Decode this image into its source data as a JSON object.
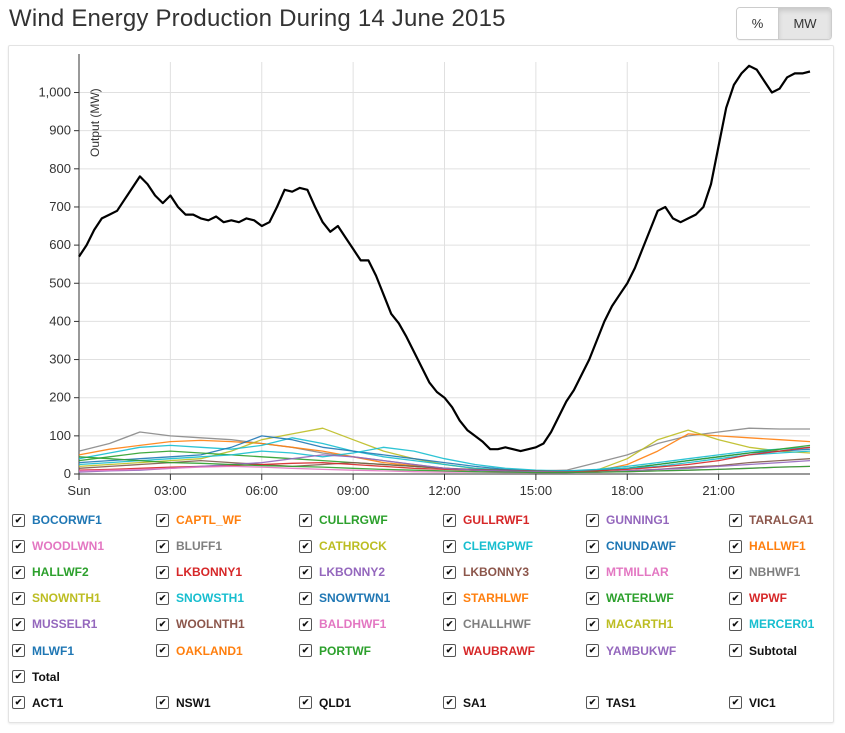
{
  "title": "Wind Energy Production During 14 June 2015",
  "unit_toggle": {
    "percent_label": "%",
    "mw_label": "MW",
    "selected": "MW"
  },
  "chart_data": {
    "type": "line",
    "title": "Wind Energy Production During 14 June 2015",
    "ylabel": "Output (MW)",
    "xlabel": "",
    "ylim": [
      0,
      1080
    ],
    "xlim": [
      0,
      24
    ],
    "y_ticks": [
      0,
      100,
      200,
      300,
      400,
      500,
      600,
      700,
      800,
      900,
      1000
    ],
    "y_tick_labels": [
      "0",
      "100",
      "200",
      "300",
      "400",
      "500",
      "600",
      "700",
      "800",
      "900",
      "1,000"
    ],
    "x_ticks": [
      0,
      3,
      6,
      9,
      12,
      15,
      18,
      21
    ],
    "x_tick_labels": [
      "Sun",
      "03:00",
      "06:00",
      "09:00",
      "12:00",
      "15:00",
      "18:00",
      "21:00"
    ],
    "grid": true,
    "series": [
      {
        "name": "Total",
        "color": "#000000",
        "x": [
          0,
          0.25,
          0.5,
          0.75,
          1.0,
          1.25,
          1.5,
          1.75,
          2.0,
          2.25,
          2.5,
          2.75,
          3.0,
          3.25,
          3.5,
          3.75,
          4.0,
          4.25,
          4.5,
          4.75,
          5.0,
          5.25,
          5.5,
          5.75,
          6.0,
          6.25,
          6.5,
          6.75,
          7.0,
          7.25,
          7.5,
          7.75,
          8.0,
          8.25,
          8.5,
          8.75,
          9.0,
          9.25,
          9.5,
          9.75,
          10.0,
          10.25,
          10.5,
          10.75,
          11.0,
          11.25,
          11.5,
          11.75,
          12.0,
          12.25,
          12.5,
          12.75,
          13.0,
          13.25,
          13.5,
          13.75,
          14.0,
          14.25,
          14.5,
          14.75,
          15.0,
          15.25,
          15.5,
          15.75,
          16.0,
          16.25,
          16.5,
          16.75,
          17.0,
          17.25,
          17.5,
          17.75,
          18.0,
          18.25,
          18.5,
          18.75,
          19.0,
          19.25,
          19.5,
          19.75,
          20.0,
          20.25,
          20.5,
          20.75,
          21.0,
          21.25,
          21.5,
          21.75,
          22.0,
          22.25,
          22.5,
          22.75,
          23.0,
          23.25,
          23.5,
          23.75,
          24.0
        ],
        "values": [
          570,
          600,
          640,
          670,
          680,
          690,
          720,
          750,
          780,
          760,
          730,
          710,
          730,
          700,
          680,
          680,
          670,
          665,
          675,
          660,
          665,
          660,
          670,
          665,
          650,
          660,
          700,
          745,
          740,
          750,
          745,
          700,
          660,
          635,
          650,
          620,
          590,
          560,
          560,
          520,
          470,
          420,
          395,
          360,
          320,
          280,
          240,
          215,
          200,
          175,
          140,
          115,
          100,
          85,
          65,
          65,
          70,
          65,
          60,
          65,
          70,
          80,
          110,
          150,
          190,
          220,
          260,
          300,
          350,
          400,
          440,
          470,
          500,
          540,
          590,
          640,
          690,
          700,
          670,
          660,
          670,
          680,
          700,
          760,
          860,
          960,
          1020,
          1050,
          1070,
          1060,
          1030,
          1000,
          1010,
          1040,
          1050,
          1050,
          1055
        ]
      },
      {
        "name": "GUNNING1",
        "color": "#888888",
        "x": [
          0,
          1,
          2,
          3,
          4,
          5,
          6,
          7,
          8,
          9,
          10,
          11,
          12,
          13,
          14,
          15,
          16,
          17,
          18,
          19,
          20,
          21,
          22,
          23,
          24
        ],
        "values": [
          60,
          80,
          110,
          100,
          95,
          90,
          80,
          70,
          55,
          45,
          35,
          25,
          15,
          10,
          8,
          8,
          10,
          30,
          50,
          80,
          100,
          110,
          120,
          118,
          118
        ]
      },
      {
        "name": "CAPTL_WF",
        "color": "#ff7f0e",
        "x": [
          0,
          1,
          2,
          3,
          4,
          5,
          6,
          7,
          8,
          9,
          10,
          11,
          12,
          13,
          14,
          15,
          16,
          17,
          18,
          19,
          20,
          21,
          22,
          23,
          24
        ],
        "values": [
          50,
          65,
          75,
          85,
          88,
          85,
          80,
          70,
          60,
          45,
          30,
          22,
          15,
          10,
          8,
          5,
          5,
          8,
          25,
          60,
          105,
          100,
          95,
          90,
          85
        ]
      },
      {
        "name": "CATHROCK",
        "color": "#bcbd22",
        "x": [
          0,
          1,
          2,
          3,
          4,
          5,
          6,
          7,
          8,
          9,
          10,
          11,
          12,
          13,
          14,
          15,
          16,
          17,
          18,
          19,
          20,
          21,
          22,
          23,
          24
        ],
        "values": [
          20,
          25,
          30,
          35,
          40,
          60,
          90,
          105,
          120,
          90,
          60,
          40,
          25,
          15,
          10,
          5,
          5,
          10,
          40,
          90,
          115,
          90,
          70,
          60,
          55
        ]
      },
      {
        "name": "SNOWSTH1",
        "color": "#17becf",
        "x": [
          0,
          1,
          2,
          3,
          4,
          5,
          6,
          7,
          8,
          9,
          10,
          11,
          12,
          13,
          14,
          15,
          16,
          17,
          18,
          19,
          20,
          21,
          22,
          23,
          24
        ],
        "values": [
          40,
          55,
          70,
          75,
          70,
          65,
          75,
          95,
          80,
          60,
          45,
          35,
          25,
          15,
          10,
          8,
          8,
          12,
          20,
          30,
          40,
          50,
          60,
          65,
          70
        ]
      },
      {
        "name": "SNOWTWN1",
        "color": "#1f77b4",
        "x": [
          0,
          1,
          2,
          3,
          4,
          5,
          6,
          7,
          8,
          9,
          10,
          11,
          12,
          13,
          14,
          15,
          16,
          17,
          18,
          19,
          20,
          21,
          22,
          23,
          24
        ],
        "values": [
          30,
          35,
          40,
          45,
          50,
          70,
          100,
          90,
          70,
          60,
          50,
          40,
          30,
          20,
          12,
          8,
          8,
          10,
          15,
          25,
          35,
          45,
          55,
          60,
          65
        ]
      },
      {
        "name": "WATERLWF",
        "color": "#2ca02c",
        "x": [
          0,
          1,
          2,
          3,
          4,
          5,
          6,
          7,
          8,
          9,
          10,
          11,
          12,
          13,
          14,
          15,
          16,
          17,
          18,
          19,
          20,
          21,
          22,
          23,
          24
        ],
        "values": [
          35,
          45,
          55,
          60,
          55,
          50,
          45,
          40,
          35,
          30,
          25,
          20,
          15,
          10,
          8,
          6,
          6,
          8,
          15,
          25,
          35,
          45,
          55,
          65,
          75
        ]
      },
      {
        "name": "MERCER01",
        "color": "#17becf",
        "x": [
          0,
          1,
          2,
          3,
          4,
          5,
          6,
          7,
          8,
          9,
          10,
          11,
          12,
          13,
          14,
          15,
          16,
          17,
          18,
          19,
          20,
          21,
          22,
          23,
          24
        ],
        "values": [
          25,
          30,
          35,
          40,
          45,
          50,
          60,
          55,
          45,
          55,
          70,
          60,
          40,
          25,
          15,
          10,
          8,
          10,
          15,
          20,
          30,
          40,
          50,
          55,
          60
        ]
      },
      {
        "name": "LKBONNY3",
        "color": "#7f5a4a",
        "x": [
          0,
          1,
          2,
          3,
          4,
          5,
          6,
          7,
          8,
          9,
          10,
          11,
          12,
          13,
          14,
          15,
          16,
          17,
          18,
          19,
          20,
          21,
          22,
          23,
          24
        ],
        "values": [
          15,
          20,
          25,
          30,
          35,
          30,
          25,
          20,
          25,
          30,
          25,
          20,
          15,
          12,
          10,
          8,
          6,
          5,
          8,
          12,
          18,
          22,
          30,
          35,
          40
        ]
      },
      {
        "name": "WPWF",
        "color": "#d62728",
        "x": [
          0,
          1,
          2,
          3,
          4,
          5,
          6,
          7,
          8,
          9,
          10,
          11,
          12,
          13,
          14,
          15,
          16,
          17,
          18,
          19,
          20,
          21,
          22,
          23,
          24
        ],
        "values": [
          10,
          12,
          15,
          18,
          20,
          22,
          25,
          28,
          30,
          25,
          20,
          15,
          12,
          10,
          8,
          6,
          5,
          8,
          12,
          18,
          25,
          35,
          50,
          60,
          70
        ]
      },
      {
        "name": "MUSSELR1",
        "color": "#9467bd",
        "x": [
          0,
          1,
          2,
          3,
          4,
          5,
          6,
          7,
          8,
          9,
          10,
          11,
          12,
          13,
          14,
          15,
          16,
          17,
          18,
          19,
          20,
          21,
          22,
          23,
          24
        ],
        "values": [
          5,
          8,
          10,
          15,
          20,
          25,
          30,
          40,
          50,
          45,
          35,
          25,
          15,
          10,
          8,
          6,
          5,
          5,
          8,
          12,
          15,
          20,
          25,
          30,
          35
        ]
      },
      {
        "name": "WOODLWN1",
        "color": "#e377c2",
        "x": [
          0,
          1,
          2,
          3,
          4,
          5,
          6,
          7,
          8,
          9,
          10,
          11,
          12,
          13,
          14,
          15,
          16,
          17,
          18,
          19,
          20,
          21,
          22,
          23,
          24
        ],
        "values": [
          8,
          10,
          12,
          15,
          18,
          20,
          18,
          15,
          12,
          10,
          8,
          6,
          5,
          5,
          4,
          4,
          4,
          5,
          6,
          8,
          10,
          12,
          15,
          18,
          20
        ]
      },
      {
        "name": "HALLWF2",
        "color": "#2ca02c",
        "x": [
          0,
          1,
          2,
          3,
          4,
          5,
          6,
          7,
          8,
          9,
          10,
          11,
          12,
          13,
          14,
          15,
          16,
          17,
          18,
          19,
          20,
          21,
          22,
          23,
          24
        ],
        "values": [
          45,
          40,
          35,
          30,
          28,
          25,
          22,
          20,
          18,
          15,
          12,
          10,
          8,
          6,
          5,
          4,
          4,
          5,
          6,
          8,
          10,
          12,
          15,
          18,
          20
        ]
      }
    ],
    "legend": {
      "position": "bottom",
      "items": [
        {
          "label": "BOCORWF1",
          "color": "#1f77b4"
        },
        {
          "label": "CAPTL_WF",
          "color": "#ff7f0e"
        },
        {
          "label": "CULLRGWF",
          "color": "#2ca02c"
        },
        {
          "label": "GULLRWF1",
          "color": "#d62728"
        },
        {
          "label": "GUNNING1",
          "color": "#9467bd"
        },
        {
          "label": "TARALGA1",
          "color": "#8c564b"
        },
        {
          "label": "WOODLWN1",
          "color": "#e377c2"
        },
        {
          "label": "BLUFF1",
          "color": "#7f7f7f"
        },
        {
          "label": "CATHROCK",
          "color": "#bcbd22"
        },
        {
          "label": "CLEMGPWF",
          "color": "#17becf"
        },
        {
          "label": "CNUNDAWF",
          "color": "#1f77b4"
        },
        {
          "label": "HALLWF1",
          "color": "#ff7f0e"
        },
        {
          "label": "HALLWF2",
          "color": "#2ca02c"
        },
        {
          "label": "LKBONNY1",
          "color": "#d62728"
        },
        {
          "label": "LKBONNY2",
          "color": "#9467bd"
        },
        {
          "label": "LKBONNY3",
          "color": "#8c564b"
        },
        {
          "label": "MTMILLAR",
          "color": "#e377c2"
        },
        {
          "label": "NBHWF1",
          "color": "#7f7f7f"
        },
        {
          "label": "SNOWNTH1",
          "color": "#bcbd22"
        },
        {
          "label": "SNOWSTH1",
          "color": "#17becf"
        },
        {
          "label": "SNOWTWN1",
          "color": "#1f77b4"
        },
        {
          "label": "STARHLWF",
          "color": "#ff7f0e"
        },
        {
          "label": "WATERLWF",
          "color": "#2ca02c"
        },
        {
          "label": "WPWF",
          "color": "#d62728"
        },
        {
          "label": "MUSSELR1",
          "color": "#9467bd"
        },
        {
          "label": "WOOLNTH1",
          "color": "#8c564b"
        },
        {
          "label": "BALDHWF1",
          "color": "#e377c2"
        },
        {
          "label": "CHALLHWF",
          "color": "#7f7f7f"
        },
        {
          "label": "MACARTH1",
          "color": "#bcbd22"
        },
        {
          "label": "MERCER01",
          "color": "#17becf"
        },
        {
          "label": "MLWF1",
          "color": "#1f77b4"
        },
        {
          "label": "OAKLAND1",
          "color": "#ff7f0e"
        },
        {
          "label": "PORTWF",
          "color": "#2ca02c"
        },
        {
          "label": "WAUBRAWF",
          "color": "#d62728"
        },
        {
          "label": "YAMBUKWF",
          "color": "#9467bd"
        },
        {
          "label": "Subtotal",
          "color": "#111111"
        },
        {
          "label": "Total",
          "color": "#111111"
        },
        {
          "label": "ACT1",
          "color": "#111111"
        },
        {
          "label": "NSW1",
          "color": "#111111"
        },
        {
          "label": "QLD1",
          "color": "#111111"
        },
        {
          "label": "SA1",
          "color": "#111111"
        },
        {
          "label": "TAS1",
          "color": "#111111"
        },
        {
          "label": "VIC1",
          "color": "#111111"
        }
      ]
    }
  }
}
